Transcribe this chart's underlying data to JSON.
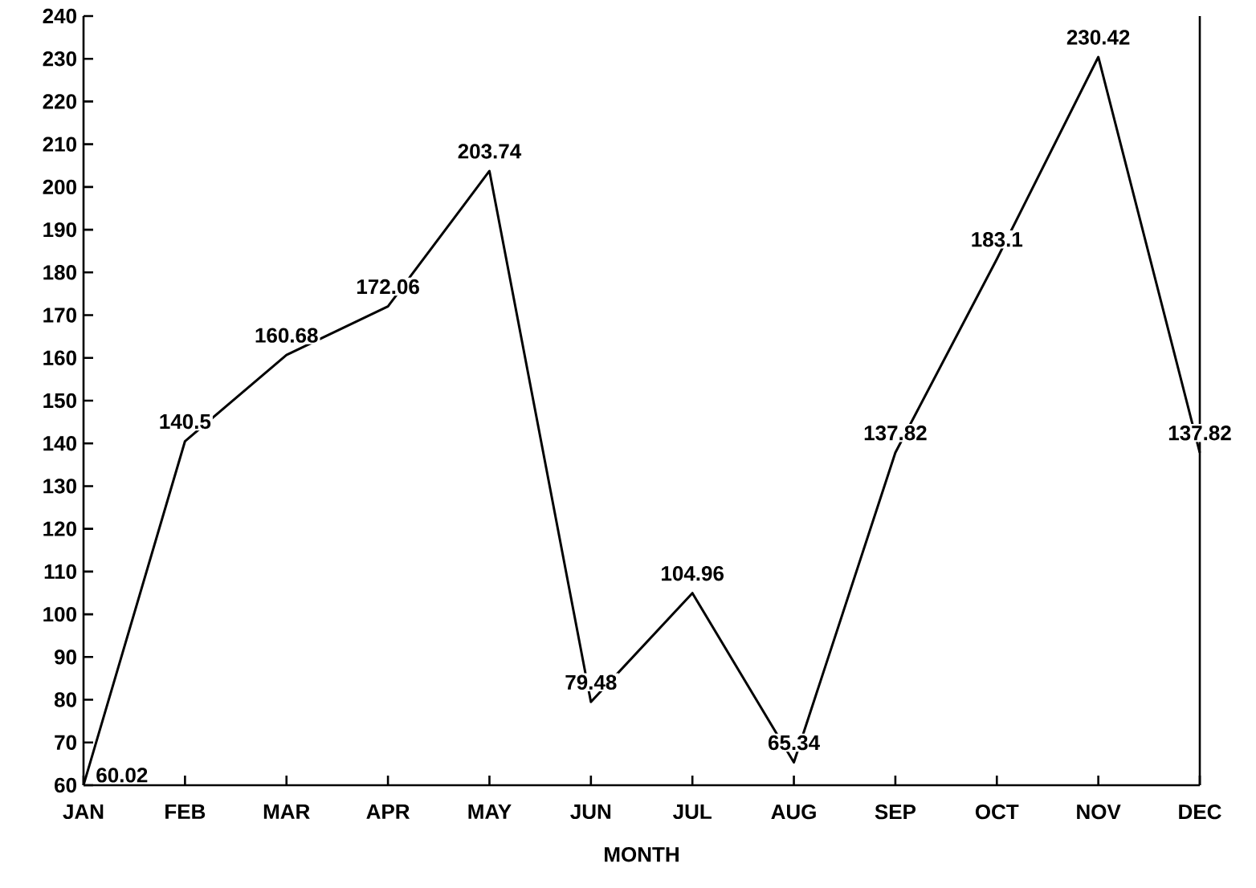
{
  "chart_data": {
    "type": "line",
    "xlabel": "MONTH",
    "categories": [
      "JAN",
      "FEB",
      "MAR",
      "APR",
      "MAY",
      "JUN",
      "JUL",
      "AUG",
      "SEP",
      "OCT",
      "NOV",
      "DEC"
    ],
    "values": [
      60.02,
      140.5,
      160.68,
      172.06,
      203.74,
      79.48,
      104.96,
      65.34,
      137.82,
      183.1,
      230.42,
      137.82
    ],
    "color": "#000000",
    "data_labels": true,
    "ylim": [
      60,
      240
    ],
    "yticks": [
      60,
      70,
      80,
      90,
      100,
      110,
      120,
      130,
      140,
      150,
      160,
      170,
      180,
      190,
      200,
      210,
      220,
      230,
      240
    ]
  }
}
